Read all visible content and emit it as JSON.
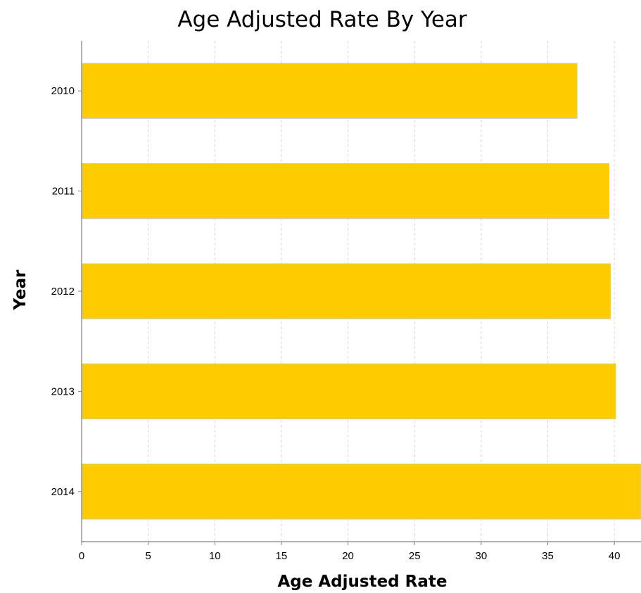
{
  "chart_data": {
    "type": "bar",
    "orientation": "horizontal",
    "title": "Age Adjusted Rate By Year",
    "xlabel": "Age Adjusted Rate",
    "ylabel": "Year",
    "categories": [
      "2010",
      "2011",
      "2012",
      "2013",
      "2014"
    ],
    "values": [
      37.2,
      39.6,
      39.7,
      40.1,
      42.5
    ],
    "xlim": [
      0,
      42
    ],
    "xticks": [
      0,
      5,
      10,
      15,
      20,
      25,
      30,
      35,
      40
    ],
    "grid": "vertical-dashed",
    "legend": "none",
    "colors": {
      "bar": "#FFCC00"
    }
  }
}
